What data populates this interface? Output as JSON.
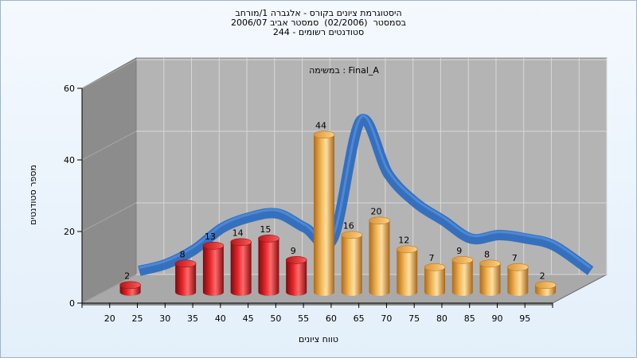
{
  "title_lines": [
    "היסטוגרמת ציונים בקורס - אלגברה 1/מורחב",
    "בסמסטר  (02/2006)  סמסטר אביב 2006/07",
    "סטודנטים רשומים - 244"
  ],
  "colors": {
    "red_bar": "#d8141a",
    "orange_bar": "#e3a240",
    "trend_line": "#2e6dc0",
    "back_wall": "#b4b4b4",
    "side_wall": "#8c8c8c",
    "floor": "#a9a9a9"
  },
  "chart_data": {
    "type": "bar",
    "annotation": "במשימה : Final_A",
    "xlabel": "טווח ציונים",
    "ylabel": "מספר סטודנטים",
    "x_tick_labels": [
      "20",
      "25",
      "30",
      "35",
      "40",
      "45",
      "50",
      "55",
      "60",
      "65",
      "70",
      "75",
      "80",
      "85",
      "90",
      "95"
    ],
    "y_ticks": [
      0,
      20,
      40,
      60
    ],
    "ylim": [
      0,
      60
    ],
    "grid": true,
    "series": [
      {
        "values": [
          2,
          0,
          8,
          13,
          14,
          15,
          9,
          44,
          16,
          20,
          12,
          7,
          9,
          8,
          7,
          2
        ],
        "colors": [
          "red",
          "red",
          "red",
          "red",
          "red",
          "red",
          "red",
          "orange",
          "orange",
          "orange",
          "orange",
          "orange",
          "orange",
          "orange",
          "orange",
          "orange"
        ]
      }
    ],
    "trend_line": [
      3,
      5,
      9,
      15,
      18,
      19,
      15,
      12,
      45,
      30,
      22,
      17,
      12,
      13,
      12,
      10
    ]
  }
}
